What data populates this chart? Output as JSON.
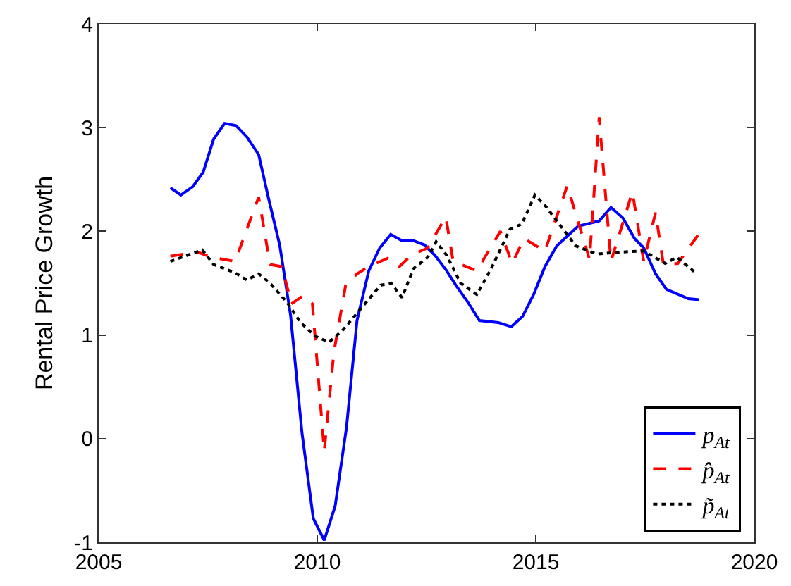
{
  "chart_data": {
    "type": "line",
    "ylabel": "Rental Price Growth",
    "xlim": [
      2005,
      2020
    ],
    "xticks": [
      2005,
      2010,
      2015,
      2020
    ],
    "ylim": [
      -1,
      4
    ],
    "yticks": [
      -1,
      0,
      1,
      2,
      3,
      4
    ],
    "grid": false,
    "legend": "bottom right",
    "marker": "none",
    "series": [
      {
        "name": "p$_{At}$",
        "color": "#0000ff",
        "line_style": "solid",
        "x": [
          2006.64,
          2006.88,
          2007.15,
          2007.39,
          2007.63,
          2007.88,
          2008.14,
          2008.39,
          2008.66,
          2008.89,
          2009.14,
          2009.39,
          2009.65,
          2009.91,
          2010.16,
          2010.41,
          2010.67,
          2010.91,
          2011.18,
          2011.43,
          2011.68,
          2011.94,
          2012.2,
          2012.45,
          2012.69,
          2012.96,
          2013.17,
          2013.44,
          2013.71,
          2014.14,
          2014.44,
          2014.7,
          2014.95,
          2015.21,
          2015.48,
          2015.97,
          2016.45,
          2016.72,
          2016.99,
          2017.26,
          2017.47,
          2017.74,
          2017.99,
          2018.49,
          2018.74
        ],
        "values": [
          2.42,
          2.35,
          2.43,
          2.57,
          2.89,
          3.04,
          3.02,
          2.91,
          2.74,
          2.31,
          1.87,
          1.19,
          0.06,
          -0.77,
          -0.98,
          -0.65,
          0.11,
          1.14,
          1.62,
          1.84,
          1.97,
          1.91,
          1.91,
          1.87,
          1.77,
          1.62,
          1.48,
          1.32,
          1.14,
          1.12,
          1.08,
          1.18,
          1.39,
          1.66,
          1.86,
          2.05,
          2.1,
          2.23,
          2.13,
          1.93,
          1.84,
          1.59,
          1.44,
          1.35,
          1.34
        ]
      },
      {
        "name": "p̂$_{At}$",
        "color": "#ff0000",
        "line_style": "dashed",
        "x": [
          2006.64,
          2007.26,
          2007.58,
          2008.12,
          2008.66,
          2008.92,
          2009.19,
          2009.41,
          2009.68,
          2009.89,
          2010.16,
          2010.38,
          2010.65,
          2010.91,
          2011.18,
          2011.61,
          2011.88,
          2012.15,
          2012.53,
          2012.94,
          2013.11,
          2013.65,
          2014.19,
          2014.46,
          2014.73,
          2015.21,
          2015.72,
          2016.23,
          2016.45,
          2016.72,
          2017.21,
          2017.47,
          2017.74,
          2017.92,
          2018.25,
          2018.74
        ],
        "values": [
          1.76,
          1.8,
          1.75,
          1.71,
          2.33,
          1.68,
          1.66,
          1.3,
          1.38,
          1.3,
          -0.12,
          0.83,
          1.48,
          1.59,
          1.66,
          1.74,
          1.66,
          1.77,
          1.84,
          2.14,
          1.71,
          1.62,
          2.0,
          1.69,
          1.93,
          1.81,
          2.44,
          1.73,
          3.1,
          1.71,
          2.38,
          1.71,
          2.18,
          1.68,
          1.69,
          1.98
        ]
      },
      {
        "name": "p̃$_{At}$",
        "color": "#000000",
        "line_style": "dotted",
        "x": [
          2006.64,
          2007.37,
          2007.63,
          2008.12,
          2008.39,
          2008.66,
          2008.92,
          2009.3,
          2009.62,
          2009.95,
          2010.27,
          2010.59,
          2011.07,
          2011.45,
          2011.69,
          2011.94,
          2012.2,
          2012.53,
          2012.72,
          2012.96,
          2013.28,
          2013.65,
          2013.98,
          2014.41,
          2014.68,
          2014.98,
          2015.21,
          2015.59,
          2015.91,
          2016.4,
          2016.94,
          2017.47,
          2017.96,
          2018.23,
          2018.68
        ],
        "values": [
          1.71,
          1.82,
          1.68,
          1.6,
          1.53,
          1.59,
          1.5,
          1.32,
          1.12,
          0.99,
          0.93,
          1.05,
          1.29,
          1.48,
          1.5,
          1.36,
          1.64,
          1.75,
          1.9,
          1.77,
          1.5,
          1.39,
          1.64,
          2.02,
          2.07,
          2.35,
          2.25,
          2.04,
          1.86,
          1.78,
          1.8,
          1.81,
          1.69,
          1.75,
          1.59
        ]
      }
    ]
  }
}
